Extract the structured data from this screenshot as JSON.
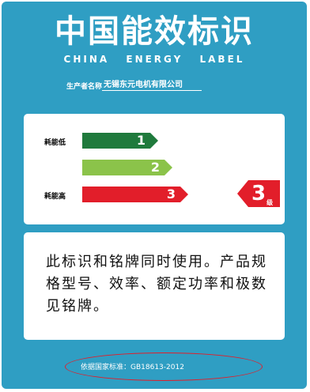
{
  "header": {
    "title_cn": "中国能效标识",
    "title_en": "CHINA ENERGY LABEL"
  },
  "producer": {
    "label": "生产者名称",
    "value": "无锡东元电机有限公司"
  },
  "grades": {
    "low_label": "耗能低",
    "high_label": "耗能高",
    "levels": [
      "1",
      "2",
      "3"
    ],
    "current": {
      "number": "3",
      "suffix": "级"
    }
  },
  "info": {
    "text": "此标识和铭牌同时使用。产品规格型号、效率、额定功率和极数见铭牌。"
  },
  "standard": {
    "text": "依据国家标准：GB18613-2012"
  },
  "colors": {
    "background": "#2f9ec3",
    "grade_1": "#1f7a3c",
    "grade_2": "#8bc34a",
    "grade_3": "#e21e2a"
  }
}
